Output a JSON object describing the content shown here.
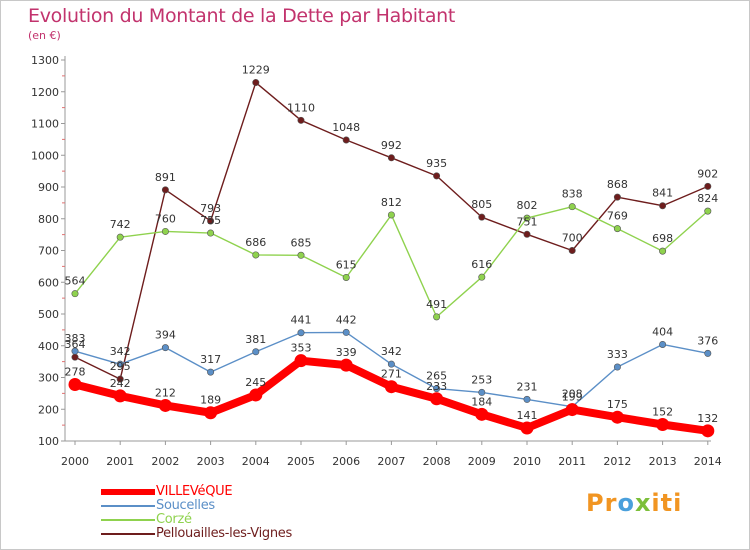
{
  "chart_data": {
    "type": "line",
    "title": "Evolution du Montant de la Dette par Habitant",
    "subtitle": "(en €)",
    "xlabel": "",
    "ylabel": "",
    "x": [
      "2000",
      "2001",
      "2002",
      "2003",
      "2004",
      "2005",
      "2006",
      "2007",
      "2008",
      "2009",
      "2010",
      "2011",
      "2012",
      "2013",
      "2014"
    ],
    "ylim": [
      100,
      1300
    ],
    "yticks": [
      100,
      200,
      300,
      400,
      500,
      600,
      700,
      800,
      900,
      1000,
      1100,
      1200,
      1300
    ],
    "grid": false,
    "legend_position": "bottom-left",
    "series": [
      {
        "name": "VILLEVéQUE",
        "color": "#ff0000",
        "values": [
          278,
          242,
          212,
          189,
          245,
          353,
          339,
          271,
          233,
          184,
          141,
          199,
          175,
          152,
          132
        ]
      },
      {
        "name": "Soucelles",
        "color": "#5b8fc7",
        "values": [
          383,
          342,
          394,
          317,
          381,
          441,
          442,
          342,
          265,
          253,
          231,
          208,
          333,
          404,
          376
        ]
      },
      {
        "name": "Corzé",
        "color": "#8fd24e",
        "values": [
          564,
          742,
          760,
          755,
          686,
          685,
          615,
          812,
          491,
          616,
          802,
          838,
          769,
          698,
          824
        ]
      },
      {
        "name": "Pellouailles-les-Vignes",
        "color": "#6e1d1d",
        "values": [
          364,
          295,
          891,
          793,
          1229,
          1110,
          1048,
          992,
          935,
          805,
          751,
          700,
          868,
          841,
          902
        ]
      }
    ]
  },
  "legend_items": [
    {
      "label": "VILLEVéQUE",
      "color": "#ff0000"
    },
    {
      "label": "Soucelles",
      "color": "#5b8fc7"
    },
    {
      "label": "Corzé",
      "color": "#8fd24e"
    },
    {
      "label": "Pellouailles-les-Vignes",
      "color": "#6e1d1d"
    }
  ],
  "logo": {
    "p1": "Pr",
    "p2": "o",
    "p3": "x",
    "p4": "iti"
  }
}
